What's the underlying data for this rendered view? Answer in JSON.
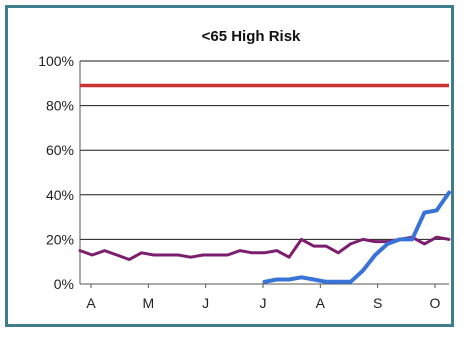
{
  "chart_data": {
    "type": "line",
    "title": "<65 High Risk",
    "xlabel": "",
    "ylabel": "",
    "ylim": [
      0,
      100
    ],
    "y_ticks": [
      0,
      20,
      40,
      60,
      80,
      100
    ],
    "y_tick_labels": [
      "0%",
      "20%",
      "40%",
      "60%",
      "80%",
      "100%"
    ],
    "x_tick_labels": [
      "A",
      "M",
      "J",
      "J",
      "A",
      "S",
      "O"
    ],
    "x_range": [
      0,
      30
    ],
    "grid": true,
    "legend": "none",
    "reference_line": {
      "value": 89,
      "color": "#cc3333"
    },
    "series": [
      {
        "color": "#7b1e6e",
        "x": [
          0,
          1,
          2,
          3,
          4,
          5,
          6,
          7,
          8,
          9,
          10,
          11,
          12,
          13,
          14,
          15,
          16,
          17,
          18,
          19,
          20,
          21,
          22,
          23,
          24,
          25,
          26,
          27,
          28,
          29,
          30
        ],
        "y": [
          15,
          13,
          15,
          13,
          11,
          14,
          13,
          13,
          13,
          12,
          13,
          13,
          13,
          15,
          14,
          14,
          15,
          12,
          20,
          17,
          17,
          14,
          18,
          20,
          19,
          19,
          20,
          21,
          18,
          21,
          20
        ]
      },
      {
        "color": "#3a73d8",
        "x": [
          15,
          16,
          17,
          18,
          19,
          20,
          21,
          22,
          23,
          24,
          25,
          26,
          27,
          28,
          29,
          30
        ],
        "y": [
          1,
          2,
          2,
          3,
          2,
          1,
          1,
          1,
          6,
          13,
          18,
          20,
          20,
          32,
          33,
          41
        ]
      }
    ]
  }
}
